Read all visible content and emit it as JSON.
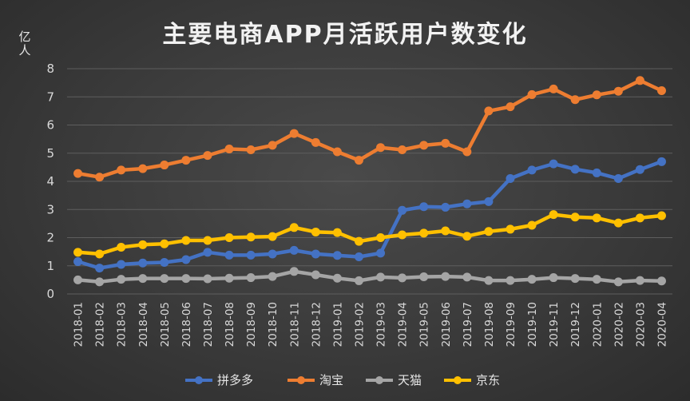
{
  "chart_data": {
    "type": "line",
    "title": "主要电商APP月活跃用户数变化",
    "ylabel": "亿人",
    "xlabel": "",
    "ylim": [
      0,
      8
    ],
    "yticks": [
      0,
      1,
      2,
      3,
      4,
      5,
      6,
      7,
      8
    ],
    "grid": true,
    "legend_position": "bottom",
    "categories": [
      "2018-01",
      "2018-02",
      "2018-03",
      "2018-04",
      "2018-05",
      "2018-06",
      "2018-07",
      "2018-08",
      "2018-09",
      "2018-10",
      "2018-11",
      "2018-12",
      "2019-01",
      "2019-02",
      "2019-03",
      "2019-04",
      "2019-05",
      "2019-06",
      "2019-07",
      "2019-08",
      "2019-09",
      "2019-10",
      "2019-11",
      "2019-12",
      "2020-01",
      "2020-02",
      "2020-03",
      "2020-04"
    ],
    "series": [
      {
        "name": "拼多多",
        "color": "#4472C4",
        "values": [
          1.15,
          0.92,
          1.05,
          1.1,
          1.12,
          1.22,
          1.48,
          1.38,
          1.38,
          1.42,
          1.55,
          1.42,
          1.37,
          1.32,
          1.45,
          2.97,
          3.1,
          3.08,
          3.2,
          3.28,
          4.1,
          4.4,
          4.62,
          4.43,
          4.3,
          4.1,
          4.42,
          4.7
        ]
      },
      {
        "name": "淘宝",
        "color": "#ED7D31",
        "values": [
          4.28,
          4.15,
          4.4,
          4.45,
          4.58,
          4.75,
          4.92,
          5.15,
          5.12,
          5.28,
          5.7,
          5.38,
          5.05,
          4.75,
          5.2,
          5.12,
          5.28,
          5.35,
          5.05,
          6.5,
          6.65,
          7.08,
          7.28,
          6.9,
          7.07,
          7.2,
          7.58,
          7.22
        ]
      },
      {
        "name": "天猫",
        "color": "#A5A5A5",
        "values": [
          0.5,
          0.43,
          0.52,
          0.55,
          0.55,
          0.55,
          0.54,
          0.56,
          0.58,
          0.62,
          0.8,
          0.68,
          0.56,
          0.47,
          0.6,
          0.57,
          0.61,
          0.62,
          0.6,
          0.48,
          0.48,
          0.52,
          0.58,
          0.55,
          0.52,
          0.43,
          0.48,
          0.46
        ]
      },
      {
        "name": "京东",
        "color": "#FFC000",
        "values": [
          1.48,
          1.42,
          1.66,
          1.75,
          1.78,
          1.9,
          1.9,
          2.0,
          2.02,
          2.04,
          2.36,
          2.2,
          2.18,
          1.87,
          2.0,
          2.1,
          2.16,
          2.24,
          2.05,
          2.22,
          2.3,
          2.44,
          2.82,
          2.73,
          2.7,
          2.52,
          2.7,
          2.78
        ]
      }
    ]
  }
}
